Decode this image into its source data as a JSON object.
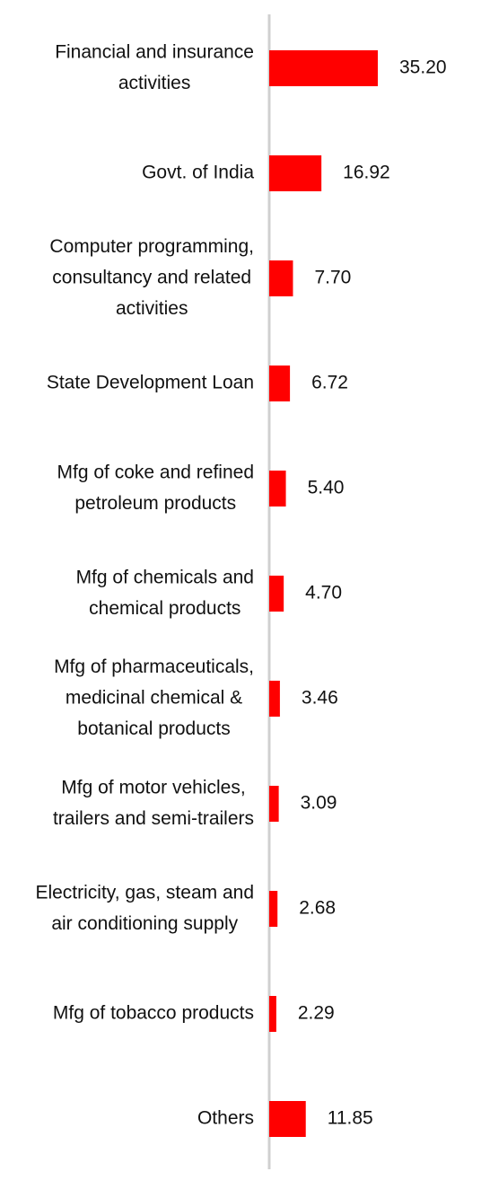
{
  "chart_data": {
    "type": "bar",
    "orientation": "horizontal",
    "categories": [
      [
        "Financial and insurance",
        "activities"
      ],
      [
        "Govt. of India"
      ],
      [
        "Computer programming,",
        "consultancy and related",
        "activities"
      ],
      [
        "State Development Loan"
      ],
      [
        "Mfg of coke and refined",
        "petroleum products"
      ],
      [
        "Mfg of chemicals and",
        "chemical products"
      ],
      [
        "Mfg of pharmaceuticals,",
        "medicinal chemical &",
        "botanical products"
      ],
      [
        "Mfg of motor vehicles,",
        "trailers and semi-trailers"
      ],
      [
        "Electricity, gas, steam and",
        "air conditioning supply"
      ],
      [
        "Mfg of tobacco products"
      ],
      [
        "Others"
      ]
    ],
    "values": [
      35.2,
      16.92,
      7.7,
      6.72,
      5.4,
      4.7,
      3.46,
      3.09,
      2.68,
      2.29,
      11.85
    ],
    "value_labels": [
      "35.20",
      "16.92",
      "7.70",
      "6.72",
      "5.40",
      "4.70",
      "3.46",
      "3.09",
      "2.68",
      "2.29",
      "11.85"
    ],
    "title": "",
    "xlabel": "",
    "ylabel": "",
    "xlim": [
      0,
      35.2
    ],
    "grid": false,
    "legend": "none",
    "colors": {
      "bar": "#ff0000",
      "axis": "#d0d0d0",
      "text": "#111111"
    }
  }
}
